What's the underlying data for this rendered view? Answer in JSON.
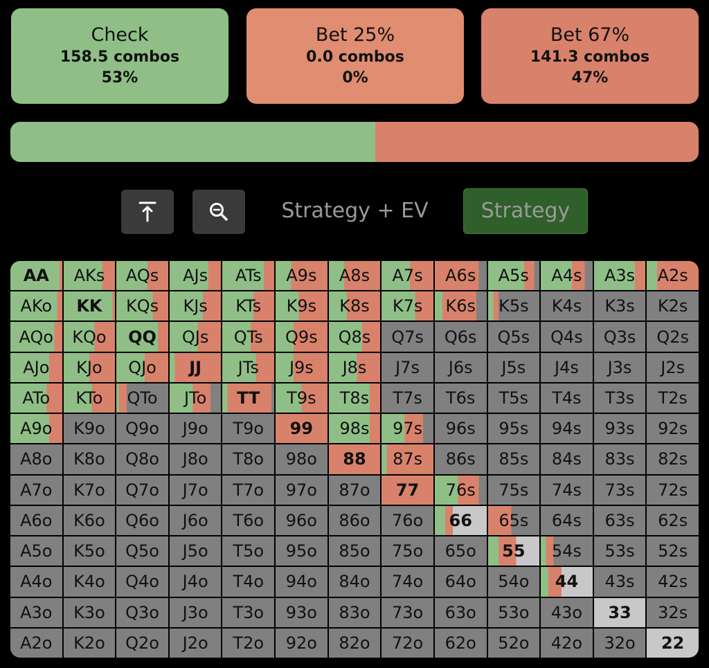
{
  "actions": [
    {
      "title": "Check",
      "combos": "158.5 combos",
      "pct": "53%",
      "color": "#8fbf87"
    },
    {
      "title": "Bet 25%",
      "combos": "0.0 combos",
      "pct": "0%",
      "color": "#e08d72"
    },
    {
      "title": "Bet 67%",
      "combos": "141.3 combos",
      "pct": "47%",
      "color": "#d9826b"
    }
  ],
  "frequency_bar": {
    "check": 53,
    "bet25": 0,
    "bet67": 47
  },
  "controls": {
    "top_icon": "arrow-to-top-icon",
    "zoom_icon": "zoom-out-icon",
    "mode_inactive": "Strategy + EV",
    "mode_active": "Strategy"
  },
  "colors": {
    "check": "#8fbf87",
    "bet": "#d9826b",
    "fold": "#808080",
    "neutral": "#c8c8c8"
  },
  "range_grid": {
    "rows": [
      [
        "AA",
        "AKs",
        "AQs",
        "AJs",
        "ATs",
        "A9s",
        "A8s",
        "A7s",
        "A6s",
        "A5s",
        "A4s",
        "A3s",
        "A2s"
      ],
      [
        "AKo",
        "KK",
        "KQs",
        "KJs",
        "KTs",
        "K9s",
        "K8s",
        "K7s",
        "K6s",
        "K5s",
        "K4s",
        "K3s",
        "K2s"
      ],
      [
        "AQo",
        "KQo",
        "QQ",
        "QJs",
        "QTs",
        "Q9s",
        "Q8s",
        "Q7s",
        "Q6s",
        "Q5s",
        "Q4s",
        "Q3s",
        "Q2s"
      ],
      [
        "AJo",
        "KJo",
        "QJo",
        "JJ",
        "JTs",
        "J9s",
        "J8s",
        "J7s",
        "J6s",
        "J5s",
        "J4s",
        "J3s",
        "J2s"
      ],
      [
        "ATo",
        "KTo",
        "QTo",
        "JTo",
        "TT",
        "T9s",
        "T8s",
        "T7s",
        "T6s",
        "T5s",
        "T4s",
        "T3s",
        "T2s"
      ],
      [
        "A9o",
        "K9o",
        "Q9o",
        "J9o",
        "T9o",
        "99",
        "98s",
        "97s",
        "96s",
        "95s",
        "94s",
        "93s",
        "92s"
      ],
      [
        "A8o",
        "K8o",
        "Q8o",
        "J8o",
        "T8o",
        "98o",
        "88",
        "87s",
        "86s",
        "85s",
        "84s",
        "83s",
        "82s"
      ],
      [
        "A7o",
        "K7o",
        "Q7o",
        "J7o",
        "T7o",
        "97o",
        "87o",
        "77",
        "76s",
        "75s",
        "74s",
        "73s",
        "72s"
      ],
      [
        "A6o",
        "K6o",
        "Q6o",
        "J6o",
        "T6o",
        "96o",
        "86o",
        "76o",
        "66",
        "65s",
        "64s",
        "63s",
        "62s"
      ],
      [
        "A5o",
        "K5o",
        "Q5o",
        "J5o",
        "T5o",
        "95o",
        "85o",
        "75o",
        "65o",
        "55",
        "54s",
        "53s",
        "52s"
      ],
      [
        "A4o",
        "K4o",
        "Q4o",
        "J4o",
        "T4o",
        "94o",
        "84o",
        "74o",
        "64o",
        "54o",
        "44",
        "43s",
        "42s"
      ],
      [
        "A3o",
        "K3o",
        "Q3o",
        "J3o",
        "T3o",
        "93o",
        "83o",
        "73o",
        "63o",
        "53o",
        "43o",
        "33",
        "32s"
      ],
      [
        "A2o",
        "K2o",
        "Q2o",
        "J2o",
        "T2o",
        "92o",
        "82o",
        "72o",
        "62o",
        "52o",
        "42o",
        "32o",
        "22"
      ]
    ],
    "strategy": [
      [
        [
          0.95,
          0.05
        ],
        [
          0.75,
          0.25
        ],
        [
          0.6,
          0.4
        ],
        [
          0.75,
          0.25
        ],
        [
          0.8,
          0.2
        ],
        [
          0.3,
          0.7
        ],
        [
          0.3,
          0.7
        ],
        [
          0.55,
          0.45
        ],
        [
          0,
          0.85
        ],
        [
          0.7,
          0.2
        ],
        [
          0.6,
          0.25
        ],
        [
          0.8,
          0.2
        ],
        [
          0.2,
          0.8
        ]
      ],
      [
        [
          0.9,
          0.1
        ],
        [
          0.95,
          0.05
        ],
        [
          0.7,
          0.3
        ],
        [
          0.65,
          0.35
        ],
        [
          0.6,
          0.4
        ],
        [
          0.45,
          0.55
        ],
        [
          0.35,
          0.65
        ],
        [
          0.65,
          0.35
        ],
        [
          0.15,
          0.65
        ],
        [
          0.1,
          0.1
        ],
        [
          0,
          0
        ],
        [
          0,
          0
        ],
        [
          0,
          0
        ]
      ],
      [
        [
          0.85,
          0.15
        ],
        [
          0.6,
          0.4
        ],
        [
          0.8,
          0.2
        ],
        [
          0.55,
          0.45
        ],
        [
          0.55,
          0.45
        ],
        [
          0.35,
          0.65
        ],
        [
          0.65,
          0.35
        ],
        [
          0,
          0
        ],
        [
          0,
          0
        ],
        [
          0,
          0
        ],
        [
          0,
          0
        ],
        [
          0,
          0
        ],
        [
          0,
          0
        ]
      ],
      [
        [
          0.75,
          0.25
        ],
        [
          0.5,
          0.5
        ],
        [
          0.55,
          0.45
        ],
        [
          0.1,
          0.9
        ],
        [
          0.65,
          0.35
        ],
        [
          0.35,
          0.65
        ],
        [
          0.55,
          0.45
        ],
        [
          0,
          0
        ],
        [
          0,
          0
        ],
        [
          0,
          0
        ],
        [
          0,
          0
        ],
        [
          0,
          0
        ],
        [
          0,
          0
        ]
      ],
      [
        [
          0.7,
          0.3
        ],
        [
          0.55,
          0.45
        ],
        [
          0.05,
          0.15
        ],
        [
          0.45,
          0.35
        ],
        [
          0.1,
          0.85
        ],
        [
          0.5,
          0.5
        ],
        [
          0.8,
          0.2
        ],
        [
          0,
          0
        ],
        [
          0,
          0
        ],
        [
          0,
          0
        ],
        [
          0,
          0
        ],
        [
          0,
          0
        ],
        [
          0,
          0
        ]
      ],
      [
        [
          0.75,
          0.25
        ],
        [
          0,
          0
        ],
        [
          0,
          0
        ],
        [
          0,
          0
        ],
        [
          0,
          0
        ],
        [
          0,
          1
        ],
        [
          0.8,
          0.2
        ],
        [
          0.45,
          0.35
        ],
        [
          0,
          0
        ],
        [
          0,
          0
        ],
        [
          0,
          0
        ],
        [
          0,
          0
        ],
        [
          0,
          0
        ]
      ],
      [
        [
          0,
          0
        ],
        [
          0,
          0
        ],
        [
          0,
          0
        ],
        [
          0,
          0
        ],
        [
          0,
          0
        ],
        [
          0,
          0
        ],
        [
          0,
          1
        ],
        [
          0.1,
          0.9
        ],
        [
          0,
          0
        ],
        [
          0,
          0
        ],
        [
          0,
          0
        ],
        [
          0,
          0
        ],
        [
          0,
          0
        ]
      ],
      [
        [
          0,
          0
        ],
        [
          0,
          0
        ],
        [
          0,
          0
        ],
        [
          0,
          0
        ],
        [
          0,
          0
        ],
        [
          0,
          0
        ],
        [
          0,
          0
        ],
        [
          0,
          1
        ],
        [
          0.45,
          0.4
        ],
        [
          0,
          0
        ],
        [
          0,
          0
        ],
        [
          0,
          0
        ],
        [
          0,
          0
        ]
      ],
      [
        [
          0,
          0
        ],
        [
          0,
          0
        ],
        [
          0,
          0
        ],
        [
          0,
          0
        ],
        [
          0,
          0
        ],
        [
          0,
          0
        ],
        [
          0,
          0
        ],
        [
          0,
          0
        ],
        [
          0.2,
          0.15
        ],
        [
          0,
          0.45
        ],
        [
          0,
          0
        ],
        [
          0,
          0
        ],
        [
          0,
          0
        ]
      ],
      [
        [
          0,
          0
        ],
        [
          0,
          0
        ],
        [
          0,
          0
        ],
        [
          0,
          0
        ],
        [
          0,
          0
        ],
        [
          0,
          0
        ],
        [
          0,
          0
        ],
        [
          0,
          0
        ],
        [
          0,
          0
        ],
        [
          0.2,
          0.35
        ],
        [
          0.1,
          0.15
        ],
        [
          0,
          0
        ],
        [
          0,
          0
        ]
      ],
      [
        [
          0,
          0
        ],
        [
          0,
          0
        ],
        [
          0,
          0
        ],
        [
          0,
          0
        ],
        [
          0,
          0
        ],
        [
          0,
          0
        ],
        [
          0,
          0
        ],
        [
          0,
          0
        ],
        [
          0,
          0
        ],
        [
          0,
          0
        ],
        [
          0.15,
          0.25
        ],
        [
          0,
          0
        ],
        [
          0,
          0
        ]
      ],
      [
        [
          0,
          0
        ],
        [
          0,
          0
        ],
        [
          0,
          0
        ],
        [
          0,
          0
        ],
        [
          0,
          0
        ],
        [
          0,
          0
        ],
        [
          0,
          0
        ],
        [
          0,
          0
        ],
        [
          0,
          0
        ],
        [
          0,
          0
        ],
        [
          0,
          0
        ],
        [
          0,
          0
        ],
        [
          0,
          0
        ]
      ],
      [
        [
          0,
          0
        ],
        [
          0,
          0
        ],
        [
          0,
          0
        ],
        [
          0,
          0
        ],
        [
          0,
          0
        ],
        [
          0,
          0
        ],
        [
          0,
          0
        ],
        [
          0,
          0
        ],
        [
          0,
          0
        ],
        [
          0,
          0
        ],
        [
          0,
          0
        ],
        [
          0,
          0
        ],
        [
          0,
          0
        ]
      ]
    ]
  }
}
